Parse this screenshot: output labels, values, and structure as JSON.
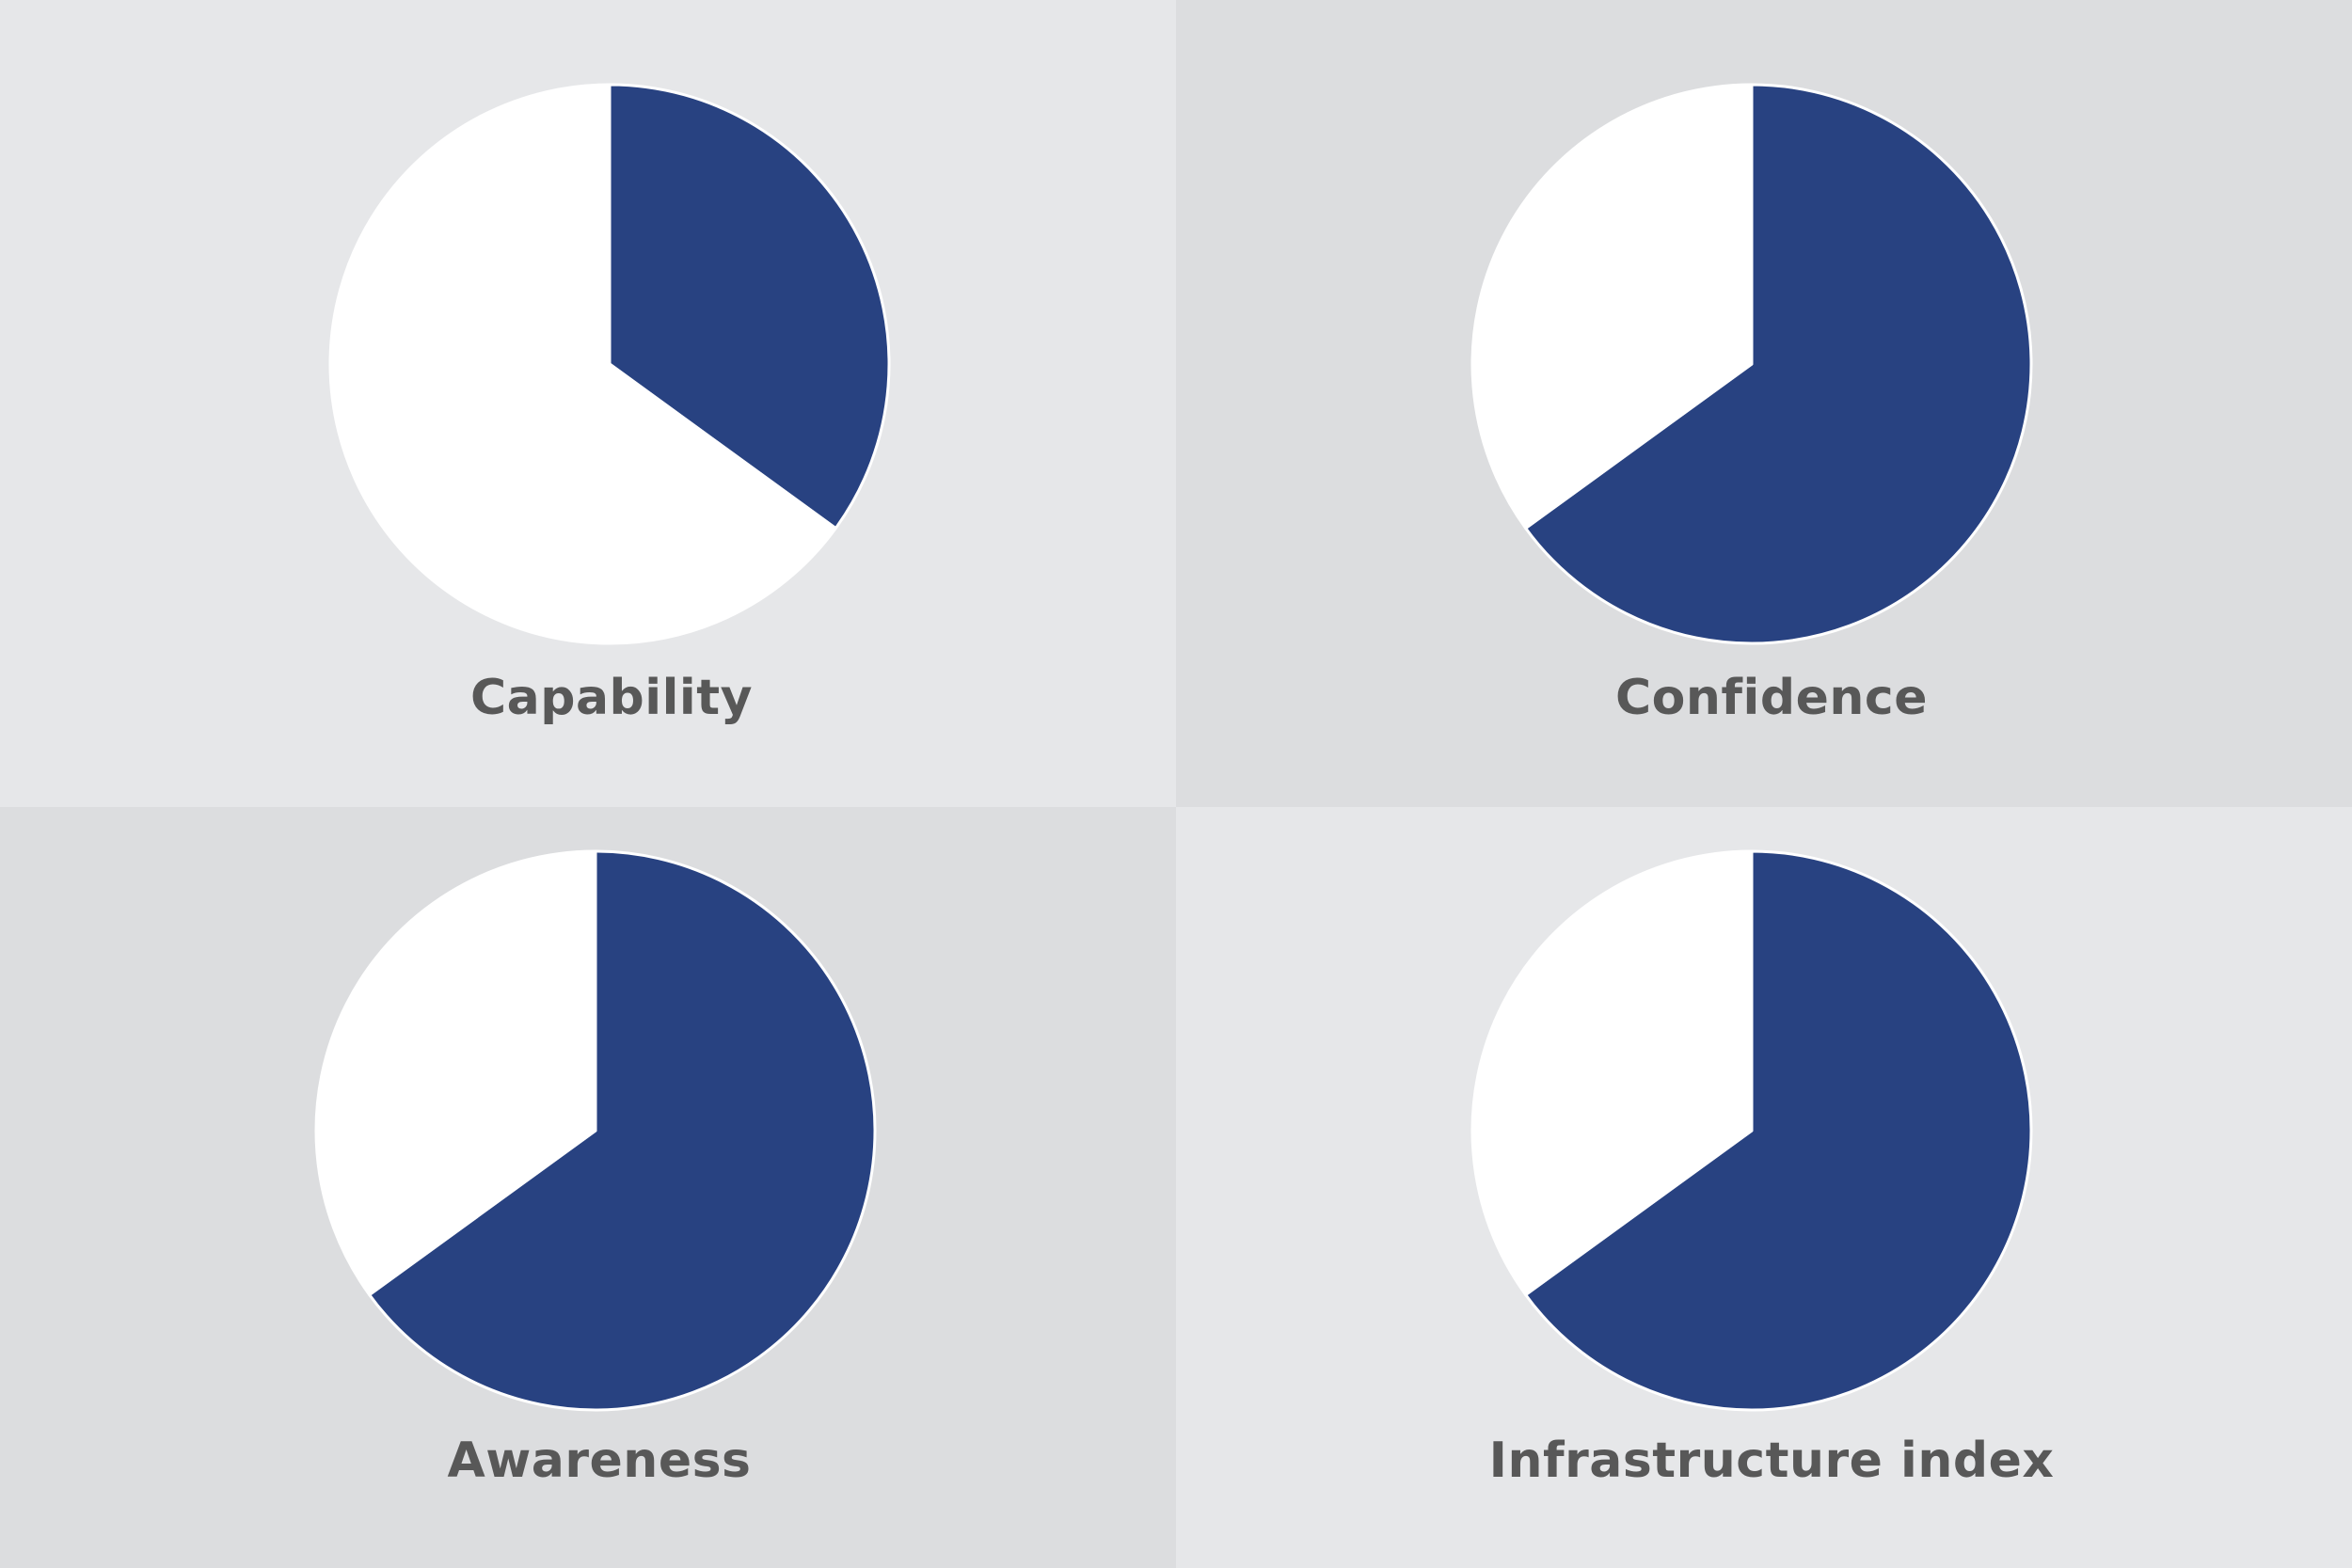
{
  "colors": {
    "panel_light": "#E6E7E9",
    "panel_dark": "#DCDDDF",
    "filled": "#284281",
    "remainder": "#FFFFFF",
    "label": "#585858"
  },
  "chart_data": [
    {
      "type": "pie",
      "title": "Capability",
      "slices": [
        {
          "value": 0.35,
          "color": "#284281"
        },
        {
          "value": 0.65,
          "color": "#FFFFFF"
        }
      ],
      "start": "12 o'clock",
      "direction": "clockwise"
    },
    {
      "type": "pie",
      "title": "Confidence",
      "slices": [
        {
          "value": 0.65,
          "color": "#284281"
        },
        {
          "value": 0.35,
          "color": "#FFFFFF"
        }
      ],
      "start": "12 o'clock",
      "direction": "clockwise"
    },
    {
      "type": "pie",
      "title": "Awareness",
      "slices": [
        {
          "value": 0.65,
          "color": "#284281"
        },
        {
          "value": 0.35,
          "color": "#FFFFFF"
        }
      ],
      "start": "12 o'clock",
      "direction": "clockwise"
    },
    {
      "type": "pie",
      "title": "Infrastructure index",
      "slices": [
        {
          "value": 0.65,
          "color": "#284281"
        },
        {
          "value": 0.35,
          "color": "#FFFFFF"
        }
      ],
      "start": "12 o'clock",
      "direction": "clockwise"
    }
  ]
}
